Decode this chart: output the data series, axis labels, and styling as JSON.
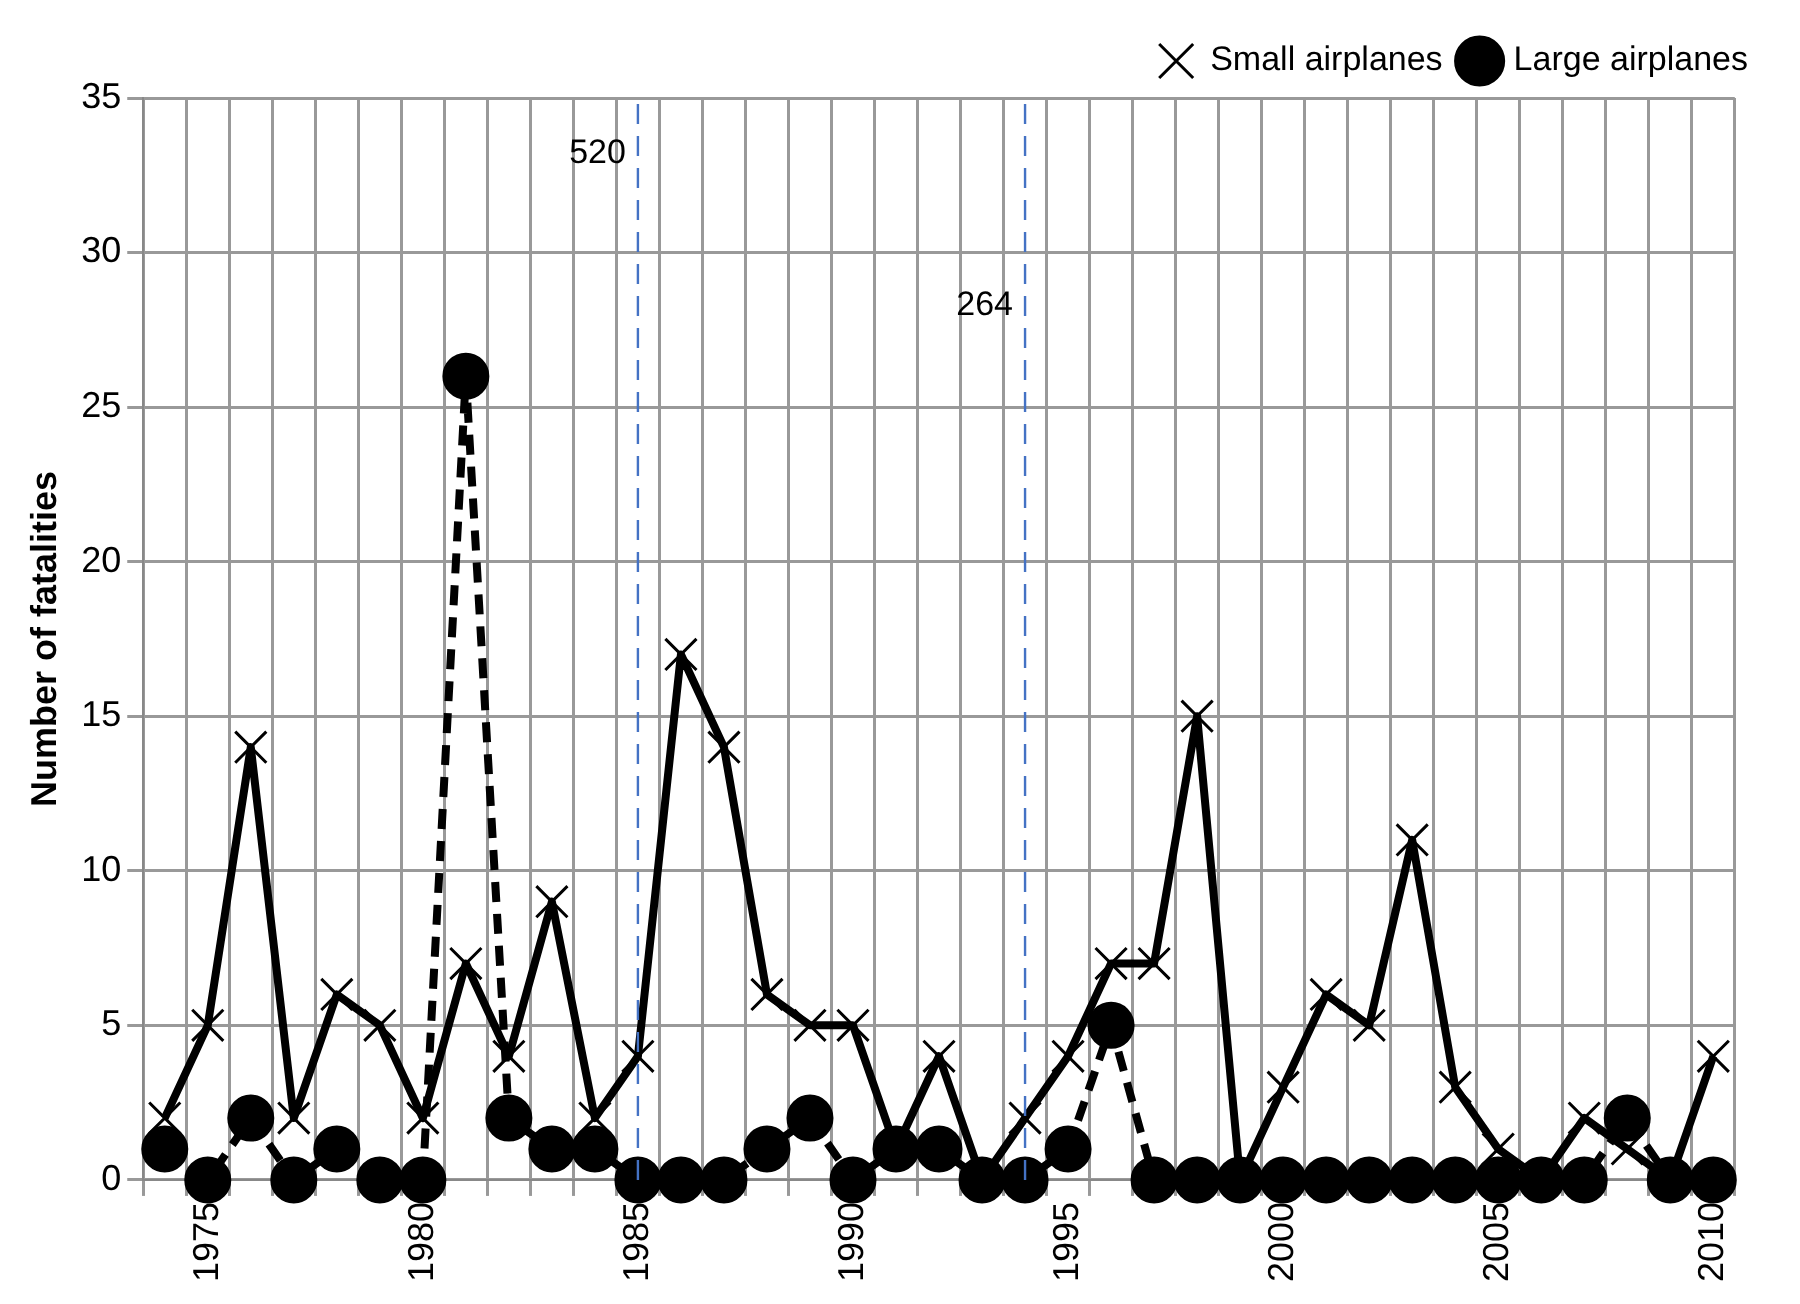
{
  "chart_data": {
    "type": "line",
    "ylabel": "Number of fatalities",
    "x": [
      1974,
      1975,
      1976,
      1977,
      1978,
      1979,
      1980,
      1981,
      1982,
      1983,
      1984,
      1985,
      1986,
      1987,
      1988,
      1989,
      1990,
      1991,
      1992,
      1993,
      1994,
      1995,
      1996,
      1997,
      1998,
      1999,
      2000,
      2001,
      2002,
      2003,
      2004,
      2005,
      2006,
      2007,
      2008,
      2009,
      2010
    ],
    "xlim": [
      1973.5,
      2010.5
    ],
    "xticks": [
      {
        "value": 1973.5,
        "label": null
      },
      {
        "value": 1974.5,
        "label": null
      },
      1975,
      {
        "value": 1975.5,
        "label": null
      },
      {
        "value": 1976.5,
        "label": null
      },
      {
        "value": 1977.5,
        "label": null
      },
      {
        "value": 1978.5,
        "label": null
      },
      {
        "value": 1979.5,
        "label": null
      },
      1980,
      {
        "value": 1980.5,
        "label": null
      },
      {
        "value": 1981.5,
        "label": null
      },
      {
        "value": 1982.5,
        "label": null
      },
      {
        "value": 1983.5,
        "label": null
      },
      {
        "value": 1984.5,
        "label": null
      },
      1985,
      {
        "value": 1985.5,
        "label": null
      },
      {
        "value": 1986.5,
        "label": null
      },
      {
        "value": 1987.5,
        "label": null
      },
      {
        "value": 1988.5,
        "label": null
      },
      {
        "value": 1989.5,
        "label": null
      },
      1990,
      {
        "value": 1990.5,
        "label": null
      },
      {
        "value": 1991.5,
        "label": null
      },
      {
        "value": 1992.5,
        "label": null
      },
      {
        "value": 1993.5,
        "label": null
      },
      {
        "value": 1994.5,
        "label": null
      },
      1995,
      {
        "value": 1995.5,
        "label": null
      },
      {
        "value": 1996.5,
        "label": null
      },
      {
        "value": 1997.5,
        "label": null
      },
      {
        "value": 1998.5,
        "label": null
      },
      {
        "value": 1999.5,
        "label": null
      },
      2000,
      {
        "value": 2000.5,
        "label": null
      },
      {
        "value": 2001.5,
        "label": null
      },
      {
        "value": 2002.5,
        "label": null
      },
      {
        "value": 2003.5,
        "label": null
      },
      {
        "value": 2004.5,
        "label": null
      },
      2005,
      {
        "value": 2005.5,
        "label": null
      },
      {
        "value": 2006.5,
        "label": null
      },
      {
        "value": 2007.5,
        "label": null
      },
      {
        "value": 2008.5,
        "label": null
      },
      {
        "value": 2009.5,
        "label": null
      },
      2010,
      {
        "value": 2010.5,
        "label": null
      }
    ],
    "series": [
      {
        "name": "Large airplanes",
        "color": "#000000",
        "marker": "circle",
        "line_style": "dashed",
        "values": [
          1,
          0,
          2,
          0,
          1,
          0,
          0,
          26,
          2,
          1,
          1,
          0,
          0,
          0,
          1,
          2,
          0,
          1,
          1,
          0,
          0,
          1,
          5,
          0,
          0,
          0,
          0,
          0,
          0,
          0,
          0,
          0,
          0,
          0,
          2,
          0,
          0
        ]
      },
      {
        "name": "Small airplanes",
        "color": "#000000",
        "marker": "cross",
        "line_style": "solid",
        "values": [
          2,
          5,
          14,
          2,
          6,
          5,
          2,
          7,
          4,
          9,
          2,
          4,
          17,
          14,
          6,
          5,
          5,
          1,
          4,
          0,
          2,
          4,
          7,
          7,
          15,
          0,
          3,
          6,
          5,
          11,
          3,
          1,
          0,
          2,
          1,
          0,
          4
        ]
      }
    ],
    "ylim": [
      0,
      35
    ],
    "yticks": [
      0,
      5,
      10,
      15,
      20,
      25,
      30,
      35
    ],
    "grid": true,
    "legend": "top right",
    "ref_lines": [
      {
        "axis": "x",
        "value": 1985,
        "color": "#4472c4",
        "line_style": "dashed"
      },
      {
        "axis": "x",
        "value": 1994,
        "color": "#4472c4",
        "line_style": "dashed"
      }
    ],
    "annotations": [
      "520",
      "264"
    ]
  }
}
